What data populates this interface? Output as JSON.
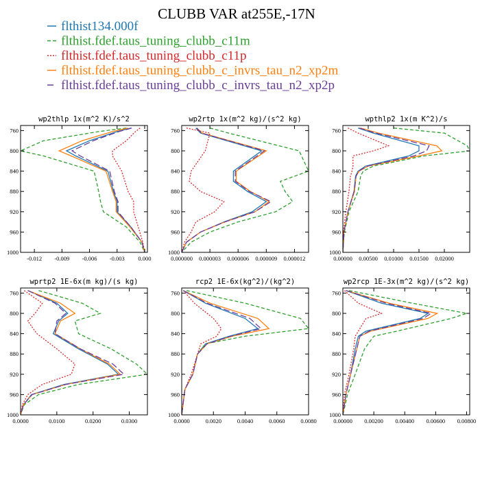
{
  "title": "CLUBB VAR at255E,-17N",
  "legend": [
    {
      "label": "flthist134.000f",
      "color": "#1f77b4",
      "dash": "solid"
    },
    {
      "label": "flthist.fdef.taus_tuning_clubb_c11m",
      "color": "#2ca02c",
      "dash": "dash"
    },
    {
      "label": "flthist.fdef.taus_tuning_clubb_c11p",
      "color": "#d62728",
      "dash": "dot"
    },
    {
      "label": "flthist.fdef.taus_tuning_clubb_c_invrs_tau_n2_xp2m",
      "color": "#ff7f0e",
      "dash": "solid"
    },
    {
      "label": "flthist.fdef.taus_tuning_clubb_c_invrs_tau_n2_xp2p",
      "color": "#6a3d9a",
      "dash": "longdash"
    }
  ],
  "chart_data": [
    {
      "type": "line",
      "title": "wp2thlp  1x(m^2 K)/s^2",
      "xlim": [
        -0.0135,
        0.0003
      ],
      "ylim": [
        1000,
        750
      ],
      "xticks": [
        "-0.012",
        "-0.009",
        "-0.006",
        "-0.003",
        "0.000"
      ],
      "xtick_values": [
        -0.012,
        -0.009,
        -0.006,
        -0.003,
        0.0
      ],
      "yticks": [
        760,
        800,
        840,
        880,
        920,
        960,
        1000
      ],
      "y": [
        755,
        762,
        780,
        800,
        810,
        840,
        880,
        900,
        920,
        950,
        980,
        1000
      ],
      "series": [
        {
          "name": "flthist134.000f",
          "values": [
            -0.0015,
            -0.003,
            -0.006,
            -0.0085,
            -0.0075,
            -0.004,
            -0.0034,
            -0.003,
            -0.003,
            -0.0015,
            -0.0003,
            0.0
          ]
        },
        {
          "name": "flthist.fdef.taus_tuning_clubb_c11m",
          "values": [
            -0.002,
            -0.005,
            -0.011,
            -0.0135,
            -0.011,
            -0.0055,
            -0.005,
            -0.0048,
            -0.0045,
            -0.002,
            -0.0005,
            0.0
          ]
        },
        {
          "name": "flthist.fdef.taus_tuning_clubb_c11p",
          "values": [
            -0.0005,
            -0.001,
            -0.002,
            -0.0035,
            -0.0035,
            -0.0025,
            -0.0018,
            -0.0012,
            -0.0012,
            -0.0007,
            -0.0002,
            0.0
          ]
        },
        {
          "name": "flthist.fdef.taus_tuning_clubb_c_invrs_tau_n2_xp2m",
          "values": [
            -0.0018,
            -0.0035,
            -0.0068,
            -0.0093,
            -0.008,
            -0.0042,
            -0.0035,
            -0.0031,
            -0.0031,
            -0.0016,
            -0.0003,
            0.0
          ]
        },
        {
          "name": "flthist.fdef.taus_tuning_clubb_c_invrs_tau_n2_xp2p",
          "values": [
            -0.0014,
            -0.0028,
            -0.0056,
            -0.0079,
            -0.007,
            -0.0038,
            -0.0033,
            -0.0029,
            -0.0029,
            -0.0015,
            -0.0003,
            0.0
          ]
        }
      ]
    },
    {
      "type": "line",
      "title": "wp2rtp  1x(m^2 kg)/(s^2 kg)",
      "xlim": [
        0,
        1.35e-05
      ],
      "ylim": [
        1000,
        750
      ],
      "xticks": [
        "0.000000",
        "0.000003",
        "0.000006",
        "0.000009",
        "0.000012"
      ],
      "xtick_values": [
        0,
        3e-06,
        6e-06,
        9e-06,
        1.2e-05
      ],
      "yticks": [
        760,
        800,
        840,
        880,
        920,
        960,
        1000
      ],
      "y": [
        755,
        765,
        800,
        840,
        860,
        880,
        900,
        920,
        940,
        960,
        980,
        1000
      ],
      "series": [
        {
          "name": "flthist134.000f",
          "values": [
            1.5e-06,
            2e-06,
            8.5e-06,
            5.5e-06,
            5.5e-06,
            7e-06,
            9e-06,
            7.5e-06,
            4.5e-06,
            2e-06,
            5e-07,
            0.0
          ]
        },
        {
          "name": "flthist.fdef.taus_tuning_clubb_c11m",
          "values": [
            3e-06,
            5e-06,
            1.25e-05,
            1.35e-05,
            1.05e-05,
            1.1e-05,
            1.18e-05,
            1e-05,
            6e-06,
            3e-06,
            1e-06,
            0.0
          ]
        },
        {
          "name": "flthist.fdef.taus_tuning_clubb_c11p",
          "values": [
            5e-07,
            3e-06,
            2.5e-06,
            1e-06,
            8e-07,
            2e-06,
            4.5e-06,
            3.5e-06,
            1.5e-06,
            1e-06,
            3e-07,
            0.0
          ]
        },
        {
          "name": "flthist.fdef.taus_tuning_clubb_c_invrs_tau_n2_xp2m",
          "values": [
            1.6e-06,
            2.2e-06,
            9e-06,
            5.8e-06,
            5.8e-06,
            7.3e-06,
            9.3e-06,
            7.8e-06,
            4.6e-06,
            2e-06,
            5e-07,
            0.0
          ]
        },
        {
          "name": "flthist.fdef.taus_tuning_clubb_c_invrs_tau_n2_xp2p",
          "values": [
            1.6e-06,
            2.1e-06,
            8.8e-06,
            5.7e-06,
            5.7e-06,
            7.2e-06,
            9.5e-06,
            7.8e-06,
            4.6e-06,
            2e-06,
            5e-07,
            0.0
          ]
        }
      ]
    },
    {
      "type": "line",
      "title": "wpthlp2  1x(m K^2)/s",
      "xlim": [
        0,
        0.025
      ],
      "ylim": [
        1000,
        750
      ],
      "xticks": [
        "0.00000",
        "0.00500",
        "0.01000",
        "0.01500",
        "0.02000"
      ],
      "xtick_values": [
        0,
        0.005,
        0.01,
        0.015,
        0.02
      ],
      "yticks": [
        760,
        800,
        840,
        880,
        920,
        960,
        1000
      ],
      "y": [
        755,
        765,
        790,
        800,
        810,
        830,
        840,
        850,
        880,
        920,
        960,
        1000
      ],
      "series": [
        {
          "name": "flthist134.000f",
          "values": [
            0.003,
            0.006,
            0.015,
            0.015,
            0.013,
            0.0045,
            0.003,
            0.0025,
            0.0022,
            0.001,
            0.0002,
            0.0
          ]
        },
        {
          "name": "flthist.fdef.taus_tuning_clubb_c11m",
          "values": [
            0.01,
            0.02,
            0.0245,
            0.025,
            0.016,
            0.006,
            0.004,
            0.0035,
            0.003,
            0.0012,
            0.0003,
            0.0
          ]
        },
        {
          "name": "flthist.fdef.taus_tuning_clubb_c11p",
          "values": [
            0.001,
            0.003,
            0.009,
            0.006,
            0.002,
            0.002,
            0.0018,
            0.0015,
            0.0012,
            0.0006,
            0.0001,
            0.0
          ]
        },
        {
          "name": "flthist.fdef.taus_tuning_clubb_c_invrs_tau_n2_xp2m",
          "values": [
            0.0035,
            0.007,
            0.0185,
            0.0195,
            0.015,
            0.005,
            0.0032,
            0.0026,
            0.0023,
            0.001,
            0.0002,
            0.0
          ]
        },
        {
          "name": "flthist.fdef.taus_tuning_clubb_c_invrs_tau_n2_xp2p",
          "values": [
            0.0032,
            0.0065,
            0.017,
            0.0165,
            0.014,
            0.0048,
            0.0031,
            0.0026,
            0.0022,
            0.001,
            0.0002,
            0.0
          ]
        }
      ]
    },
    {
      "type": "line",
      "title": "wprtp2  1E-6x(m kg)/(s kg)",
      "xlim": [
        0,
        0.035
      ],
      "ylim": [
        1000,
        750
      ],
      "xticks": [
        "0.0000",
        "0.0100",
        "0.0200",
        "0.0300"
      ],
      "xtick_values": [
        0,
        0.01,
        0.02,
        0.03
      ],
      "yticks": [
        760,
        800,
        840,
        880,
        920,
        960,
        1000
      ],
      "y": [
        755,
        780,
        800,
        815,
        840,
        870,
        900,
        920,
        940,
        960,
        980,
        1000
      ],
      "series": [
        {
          "name": "flthist134.000f",
          "values": [
            0.002,
            0.01,
            0.013,
            0.0105,
            0.009,
            0.016,
            0.024,
            0.027,
            0.012,
            0.003,
            0.0008,
            0.0
          ]
        },
        {
          "name": "flthist.fdef.taus_tuning_clubb_c11m",
          "values": [
            0.005,
            0.017,
            0.022,
            0.015,
            0.016,
            0.025,
            0.032,
            0.035,
            0.016,
            0.005,
            0.001,
            0.0
          ]
        },
        {
          "name": "flthist.fdef.taus_tuning_clubb_c11p",
          "values": [
            0.001,
            0.006,
            0.004,
            0.002,
            0.0045,
            0.01,
            0.015,
            0.014,
            0.006,
            0.002,
            0.0005,
            0.0
          ]
        },
        {
          "name": "flthist.fdef.taus_tuning_clubb_c_invrs_tau_n2_xp2m",
          "values": [
            0.002,
            0.011,
            0.015,
            0.011,
            0.0095,
            0.0165,
            0.0245,
            0.0275,
            0.0125,
            0.0032,
            0.0008,
            0.0
          ]
        },
        {
          "name": "flthist.fdef.taus_tuning_clubb_c_invrs_tau_n2_xp2p",
          "values": [
            0.002,
            0.0095,
            0.0125,
            0.01,
            0.0095,
            0.0165,
            0.0255,
            0.0285,
            0.0125,
            0.0032,
            0.0008,
            0.0
          ]
        }
      ]
    },
    {
      "type": "line",
      "title": "rcp2  1E-6x(kg^2)/(kg^2)",
      "xlim": [
        0,
        0.008
      ],
      "ylim": [
        1000,
        750
      ],
      "xticks": [
        "0.0000",
        "0.0020",
        "0.0040",
        "0.0060",
        "0.0080"
      ],
      "xtick_values": [
        0,
        0.002,
        0.004,
        0.006,
        0.008
      ],
      "yticks": [
        760,
        800,
        840,
        880,
        920,
        960,
        1000
      ],
      "y": [
        755,
        780,
        810,
        830,
        845,
        860,
        880,
        920,
        950,
        1000
      ],
      "series": [
        {
          "name": "flthist134.000f",
          "values": [
            0.0001,
            0.0015,
            0.004,
            0.0048,
            0.003,
            0.0015,
            0.001,
            0.0007,
            0.0002,
            0.0
          ]
        },
        {
          "name": "flthist.fdef.taus_tuning_clubb_c11m",
          "values": [
            0.0003,
            0.004,
            0.0075,
            0.008,
            0.004,
            0.0015,
            0.001,
            0.0007,
            0.0002,
            0.0
          ]
        },
        {
          "name": "flthist.fdef.taus_tuning_clubb_c11p",
          "values": [
            0.0001,
            0.0008,
            0.002,
            0.0025,
            0.0022,
            0.0012,
            0.001,
            0.0006,
            0.0002,
            0.0
          ]
        },
        {
          "name": "flthist.fdef.taus_tuning_clubb_c_invrs_tau_n2_xp2m",
          "values": [
            0.0001,
            0.0018,
            0.0048,
            0.0055,
            0.0032,
            0.0016,
            0.001,
            0.0007,
            0.0002,
            0.0
          ]
        },
        {
          "name": "flthist.fdef.taus_tuning_clubb_c_invrs_tau_n2_xp2p",
          "values": [
            0.0001,
            0.0016,
            0.0043,
            0.005,
            0.0031,
            0.0016,
            0.001,
            0.0007,
            0.0002,
            0.0
          ]
        }
      ]
    },
    {
      "type": "line",
      "title": "wp2rcp  1E-3x(m^2 kg)/(s^2 kg)",
      "xlim": [
        0,
        0.0082
      ],
      "ylim": [
        1000,
        750
      ],
      "xticks": [
        "0.00000",
        "0.00200",
        "0.00400",
        "0.00600",
        "0.00800"
      ],
      "xtick_values": [
        0,
        0.002,
        0.004,
        0.006,
        0.008
      ],
      "yticks": [
        760,
        800,
        840,
        880,
        920,
        960,
        1000
      ],
      "y": [
        755,
        780,
        800,
        810,
        835,
        845,
        870,
        920,
        960,
        1000
      ],
      "series": [
        {
          "name": "flthist134.000f",
          "values": [
            0.0002,
            0.0025,
            0.0055,
            0.005,
            0.0015,
            0.001,
            0.0008,
            0.0005,
            0.0002,
            0.0
          ]
        },
        {
          "name": "flthist.fdef.taus_tuning_clubb_c11m",
          "values": [
            0.0004,
            0.0045,
            0.008,
            0.007,
            0.0035,
            0.002,
            0.0014,
            0.0008,
            0.0003,
            0.0
          ]
        },
        {
          "name": "flthist.fdef.taus_tuning_clubb_c11p",
          "values": [
            0.0001,
            0.001,
            0.0025,
            0.0015,
            0.001,
            0.0008,
            0.0007,
            0.0004,
            0.0001,
            0.0
          ]
        },
        {
          "name": "flthist.fdef.taus_tuning_clubb_c_invrs_tau_n2_xp2m",
          "values": [
            0.0002,
            0.003,
            0.0061,
            0.0055,
            0.0018,
            0.0011,
            0.0009,
            0.0005,
            0.0002,
            0.0
          ]
        },
        {
          "name": "flthist.fdef.taus_tuning_clubb_c_invrs_tau_n2_xp2p",
          "values": [
            0.0002,
            0.0028,
            0.0057,
            0.0052,
            0.0017,
            0.0011,
            0.0009,
            0.0005,
            0.0002,
            0.0
          ]
        }
      ]
    }
  ]
}
